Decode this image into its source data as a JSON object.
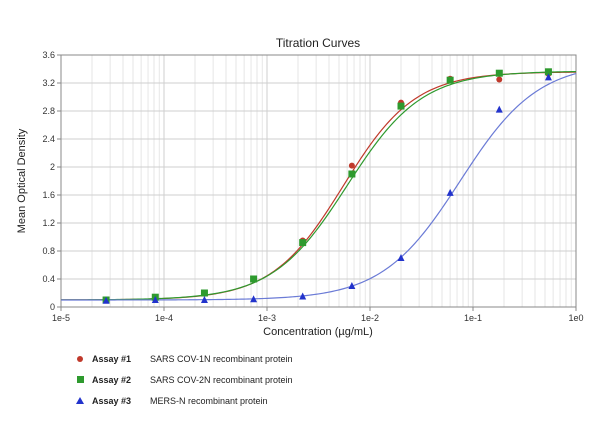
{
  "chart_data": {
    "type": "scatter",
    "title": "Titration Curves",
    "xlabel": "Concentration (µg/mL)",
    "ylabel": "Mean Optical Density",
    "x_scale": "log",
    "xlim": [
      1e-05,
      1
    ],
    "ylim": [
      0,
      3.6
    ],
    "x_tick_values": [
      1e-05,
      0.0001,
      0.001,
      0.01,
      0.1,
      1
    ],
    "x_tick_labels": [
      "1e-5",
      "1e-4",
      "1e-3",
      "1e-2",
      "1e-1",
      "1e0"
    ],
    "y_tick_values": [
      0,
      0.4,
      0.8,
      1.2,
      1.6,
      2,
      2.4,
      2.8,
      3.2,
      3.6
    ],
    "y_tick_labels": [
      "0",
      "0.4",
      "0.8",
      "1.2",
      "1.6",
      "2",
      "2.4",
      "2.8",
      "3.2",
      "3.6"
    ],
    "grid": true,
    "legend_position": "bottom",
    "series": [
      {
        "assay": "Assay #1",
        "name": "SARS COV-1N recombinant protein",
        "color": "#c0392b",
        "marker": "circle",
        "x": [
          2.74e-05,
          8.23e-05,
          0.000247,
          0.000741,
          0.00222,
          0.00667,
          0.02,
          0.06,
          0.18,
          0.54
        ],
        "y": [
          0.1,
          0.13,
          0.19,
          0.4,
          0.95,
          2.02,
          2.92,
          3.26,
          3.25,
          3.33
        ]
      },
      {
        "assay": "Assay #2",
        "name": "SARS COV-2N recombinant protein",
        "color": "#2e9a2e",
        "marker": "square",
        "x": [
          2.74e-05,
          8.23e-05,
          0.000247,
          0.000741,
          0.00222,
          0.00667,
          0.02,
          0.06,
          0.18,
          0.54
        ],
        "y": [
          0.1,
          0.14,
          0.2,
          0.4,
          0.92,
          1.9,
          2.87,
          3.24,
          3.34,
          3.36
        ]
      },
      {
        "assay": "Assay #3",
        "name": "MERS-N recombinant protein",
        "color": "#2233cc",
        "marker": "triangle",
        "x": [
          2.74e-05,
          8.23e-05,
          0.000247,
          0.000741,
          0.00222,
          0.00667,
          0.02,
          0.06,
          0.18,
          0.54
        ],
        "y": [
          0.09,
          0.1,
          0.1,
          0.11,
          0.15,
          0.3,
          0.7,
          1.63,
          2.82,
          3.28
        ]
      }
    ],
    "fit_curves": [
      {
        "color": "#c0392b",
        "bottom": 0.1,
        "top": 3.36,
        "ec50": 0.0055,
        "hill": 1.25
      },
      {
        "color": "#2e9a2e",
        "bottom": 0.1,
        "top": 3.37,
        "ec50": 0.006,
        "hill": 1.2
      },
      {
        "color": "#6b7bd6",
        "bottom": 0.1,
        "top": 3.5,
        "ec50": 0.075,
        "hill": 1.15
      }
    ]
  }
}
